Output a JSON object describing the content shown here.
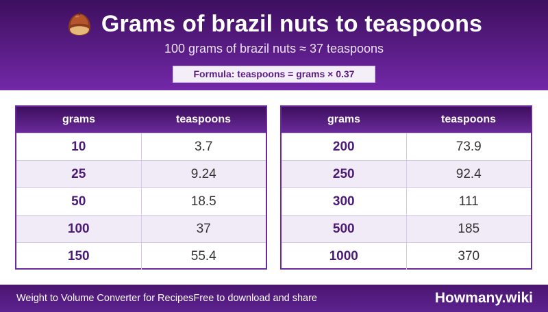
{
  "header": {
    "icon": "brazil-nut-icon",
    "title": "Grams of brazil nuts to teaspoons",
    "subtitle": "100 grams of brazil nuts ≈ 37 teaspoons",
    "formula": "Formula: teaspoons = grams × 0.37"
  },
  "tables": [
    {
      "col_grams": "grams",
      "col_teaspoons": "teaspoons",
      "rows": [
        {
          "grams": "10",
          "teaspoons": "3.7"
        },
        {
          "grams": "25",
          "teaspoons": "9.24"
        },
        {
          "grams": "50",
          "teaspoons": "18.5"
        },
        {
          "grams": "100",
          "teaspoons": "37"
        },
        {
          "grams": "150",
          "teaspoons": "55.4"
        }
      ]
    },
    {
      "col_grams": "grams",
      "col_teaspoons": "teaspoons",
      "rows": [
        {
          "grams": "200",
          "teaspoons": "73.9"
        },
        {
          "grams": "250",
          "teaspoons": "92.4"
        },
        {
          "grams": "300",
          "teaspoons": "111"
        },
        {
          "grams": "500",
          "teaspoons": "185"
        },
        {
          "grams": "1000",
          "teaspoons": "370"
        }
      ]
    }
  ],
  "footer": {
    "left": "Weight to Volume Converter for Recipes",
    "middle": "Free to download and share",
    "brand": "Howmany.wiki"
  },
  "colors": {
    "primary": "#5a1d86",
    "dark": "#3d0f5e",
    "row_alt": "#f1eaf7"
  }
}
